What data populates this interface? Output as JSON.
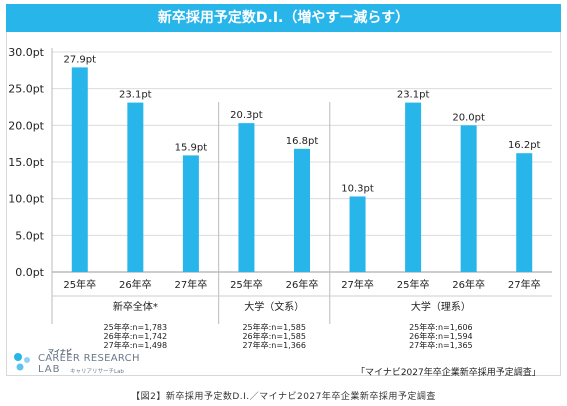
{
  "chart_data": {
    "type": "bar",
    "title": "新卒採用予定数D.I.（増やすー減らす）",
    "ylim": [
      0,
      30
    ],
    "yticks": [
      "0.0pt",
      "5.0pt",
      "10.0pt",
      "15.0pt",
      "20.0pt",
      "25.0pt",
      "30.0pt"
    ],
    "ytick_values": [
      0,
      5,
      10,
      15,
      20,
      25,
      30
    ],
    "grid": true,
    "bar_color": "#28b5ea",
    "categories": [
      "25年卒",
      "26年卒",
      "27年卒",
      "25年卒",
      "26年卒",
      "27年卒",
      "25年卒",
      "26年卒",
      "27年卒"
    ],
    "values": [
      27.9,
      23.1,
      15.9,
      20.3,
      16.8,
      10.3,
      23.1,
      20.0,
      16.2
    ],
    "value_labels": [
      "27.9pt",
      "23.1pt",
      "15.9pt",
      "20.3pt",
      "16.8pt",
      "10.3pt",
      "23.1pt",
      "20.0pt",
      "16.2pt"
    ],
    "groups": [
      {
        "name": "新卒全体*",
        "notes": [
          "25年卒:n=1,783",
          "26年卒:n=1,742",
          "27年卒:n=1,498"
        ]
      },
      {
        "name": "大学（文系）",
        "notes": [
          "25年卒:n=1,585",
          "26年卒:n=1,585",
          "27年卒:n=1,366"
        ]
      },
      {
        "name": "大学（理系）",
        "notes": [
          "25年卒:n=1,606",
          "26年卒:n=1,594",
          "27年卒:n=1,365"
        ]
      }
    ]
  },
  "logo": {
    "brand": "マイナビ",
    "line1": "CAREER RESEARCH",
    "line2": "LAB",
    "sub": "キャリアリサーチLab"
  },
  "source": "「マイナビ2027年卒企業新卒採用予定調査」",
  "caption": "【図2】新卒採用予定数D.I.／マイナビ2027年卒企業新卒採用予定調査"
}
